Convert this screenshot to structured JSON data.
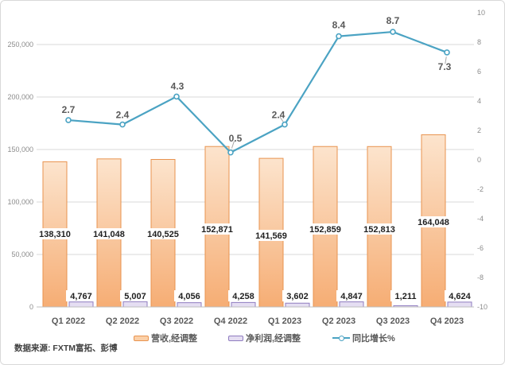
{
  "chart_data": {
    "type": "combo",
    "title": "",
    "categories": [
      "Q1 2022",
      "Q2 2022",
      "Q3 2022",
      "Q4 2022",
      "Q1 2023",
      "Q2 2023",
      "Q3 2023",
      "Q4 2023"
    ],
    "series": [
      {
        "name": "营收,经调整",
        "type": "bar",
        "axis": "left",
        "values": [
          138310,
          141048,
          140525,
          152871,
          141569,
          152859,
          152813,
          164048
        ],
        "labels": [
          "138,310",
          "141,048",
          "140,525",
          "152,871",
          "141,569",
          "152,859",
          "152,813",
          "164,048"
        ]
      },
      {
        "name": "净利润,经调整",
        "type": "bar",
        "axis": "left",
        "values": [
          4767,
          5007,
          4056,
          4258,
          3602,
          4847,
          1211,
          4624
        ],
        "labels": [
          "4,767",
          "5,007",
          "4,056",
          "4,258",
          "3,602",
          "4,847",
          "1,211",
          "4,624"
        ]
      },
      {
        "name": "同比增长%",
        "type": "line",
        "axis": "right",
        "values": [
          2.7,
          2.4,
          4.3,
          0.5,
          2.4,
          8.4,
          8.7,
          7.3
        ],
        "labels": [
          "2.7",
          "2.4",
          "4.3",
          "0.5",
          "2.4",
          "8.4",
          "8.7",
          "7.3"
        ]
      }
    ],
    "left_axis": {
      "min": 0,
      "max": 250000,
      "step": 50000,
      "tick_labels": [
        "0",
        "50,000",
        "100,000",
        "150,000",
        "200,000",
        "250,000"
      ]
    },
    "right_axis": {
      "min": -10,
      "max": 10,
      "step": 2,
      "tick_labels": [
        "10",
        "8",
        "6",
        "4",
        "2",
        "0",
        "-2",
        "-4",
        "-6",
        "-8",
        "-10"
      ]
    },
    "grid": true,
    "legend_position": "bottom",
    "source": "数据来源: FXTM富拓、彭博",
    "colors": {
      "revenue_fill_top": "#fce4cd",
      "revenue_fill_bottom": "#f6ad74",
      "revenue_border": "#e8934f",
      "profit_fill": "#e5def2",
      "profit_border": "#8f7cc0",
      "line": "#4ba3c3",
      "grid_line": "#d9d9d9",
      "axis_line": "#bfbfbf",
      "axis_text": "#8c8c8c",
      "value_text": "#1f1f1f",
      "line_label_text": "#595959",
      "category_text": "#595959",
      "leader_line": "#a6a6a6"
    }
  }
}
